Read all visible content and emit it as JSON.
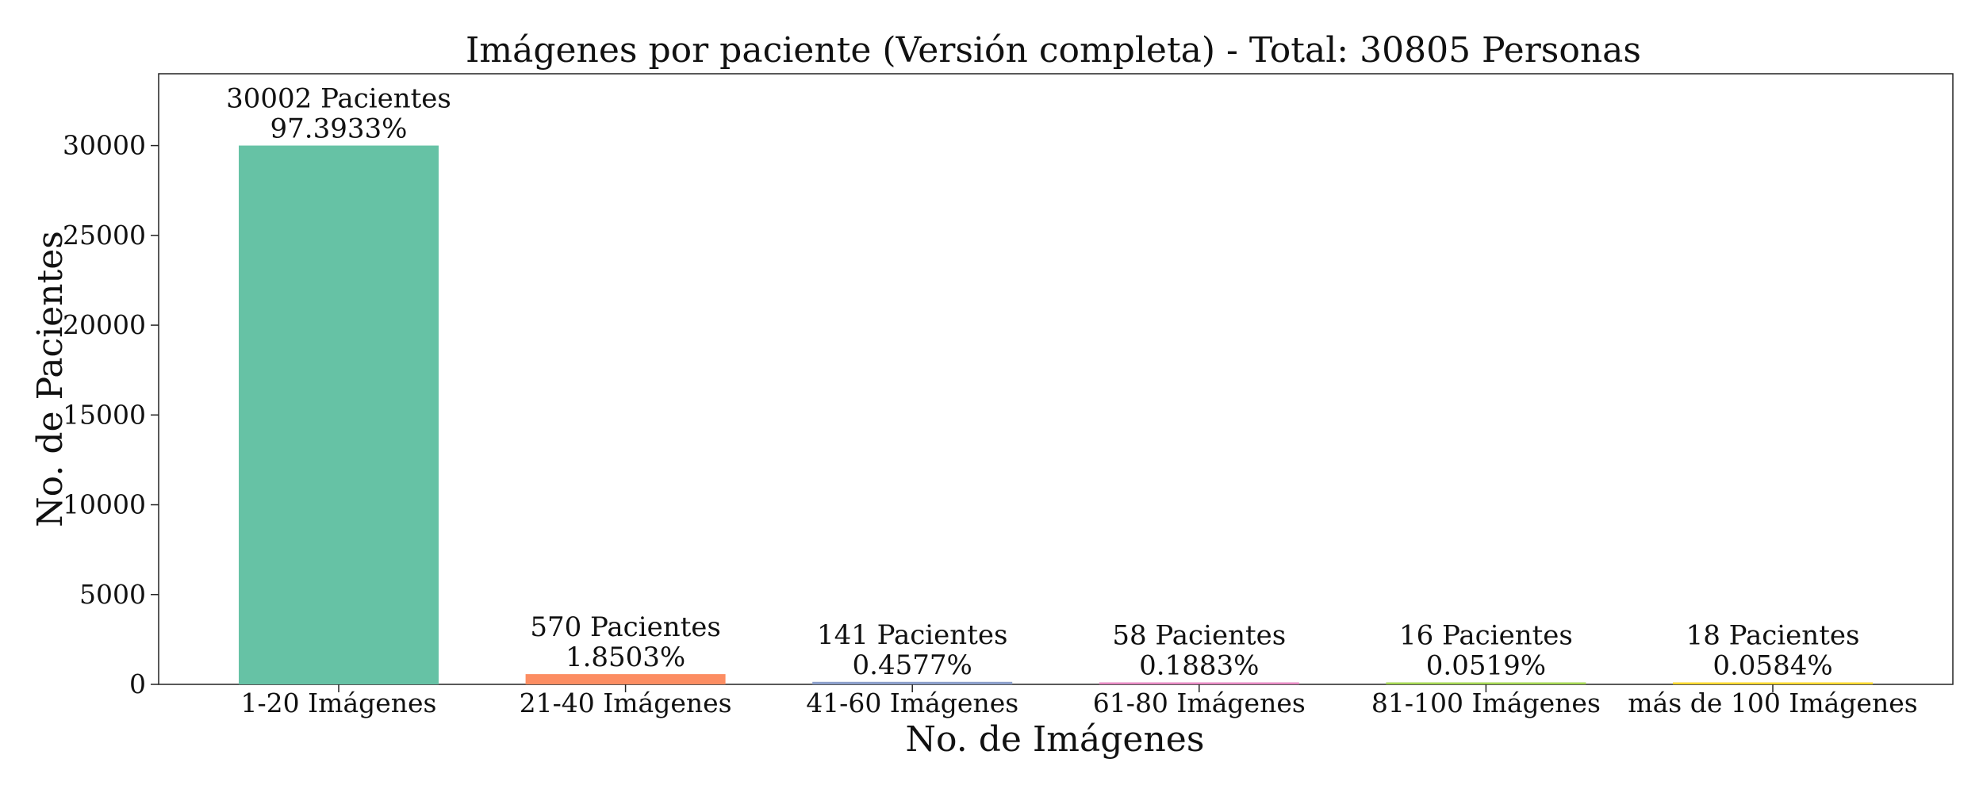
{
  "chart_data": {
    "type": "bar",
    "title": "Imágenes por paciente (Versión completa) - Total: 30805 Personas",
    "xlabel": "No. de Imágenes",
    "ylabel": "No. de Pacientes",
    "categories": [
      "1-20 Imágenes",
      "21-40 Imágenes",
      "41-60 Imágenes",
      "61-80 Imágenes",
      "81-100 Imágenes",
      "más de 100 Imágenes"
    ],
    "values": [
      30002,
      570,
      141,
      58,
      16,
      18
    ],
    "count_labels": [
      "30002 Pacientes",
      "570 Pacientes",
      "141 Pacientes",
      "58 Pacientes",
      "16 Pacientes",
      "18 Pacientes"
    ],
    "percent_labels": [
      "97.3933%",
      "1.8503%",
      "0.4577%",
      "0.1883%",
      "0.0519%",
      "0.0584%"
    ],
    "colors": [
      "#66c2a5",
      "#fc8d62",
      "#8da0cb",
      "#e78ac3",
      "#a6d854",
      "#ffd92f"
    ],
    "ylim": [
      0,
      34000
    ],
    "yticks": [
      0,
      5000,
      10000,
      15000,
      20000,
      25000,
      30000
    ],
    "grid": false,
    "legend": "none"
  }
}
